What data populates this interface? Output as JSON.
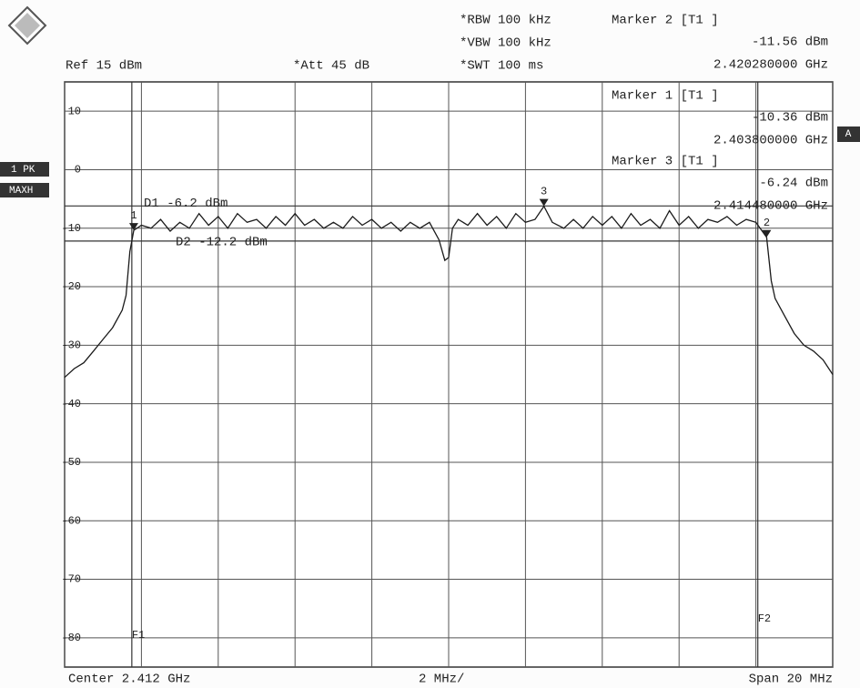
{
  "chart_data": {
    "type": "line",
    "header": {
      "rbw": "*RBW 100 kHz",
      "vbw": "*VBW 100 kHz",
      "swt": "*SWT 100 ms",
      "ref": "Ref 15 dBm",
      "att": "*Att 45 dB"
    },
    "footer": {
      "center": "Center 2.412 GHz",
      "div": "2 MHz/",
      "span": "Span 20 MHz"
    },
    "side_labels": {
      "detector": "1 PK",
      "mode": "MAXH",
      "trace": "A"
    },
    "xlim": [
      2.402,
      2.422
    ],
    "ylim": [
      -85,
      15
    ],
    "yticks": [
      10,
      0,
      -10,
      -20,
      -30,
      -40,
      -50,
      -60,
      -70,
      -80
    ],
    "xticks": [
      2.402,
      2.404,
      2.406,
      2.408,
      2.41,
      2.412,
      2.414,
      2.416,
      2.418,
      2.42,
      2.422
    ],
    "grid": true,
    "color": "#1a1a1a",
    "x": [
      2.402,
      2.40225,
      2.4025,
      2.40275,
      2.403,
      2.40325,
      2.4035,
      2.4036,
      2.4037,
      2.4038,
      2.404,
      2.40425,
      2.4045,
      2.40475,
      2.405,
      2.40525,
      2.4055,
      2.40575,
      2.406,
      2.40625,
      2.4065,
      2.40675,
      2.407,
      2.40725,
      2.4075,
      2.40775,
      2.408,
      2.40825,
      2.4085,
      2.40875,
      2.409,
      2.40925,
      2.4095,
      2.40975,
      2.41,
      2.41025,
      2.4105,
      2.41075,
      2.411,
      2.41125,
      2.4115,
      2.41175,
      2.4119,
      2.412,
      2.4121,
      2.41225,
      2.4125,
      2.41275,
      2.413,
      2.41325,
      2.4135,
      2.41375,
      2.414,
      2.41425,
      2.41448,
      2.4147,
      2.415,
      2.41525,
      2.4155,
      2.41575,
      2.416,
      2.41625,
      2.4165,
      2.41675,
      2.417,
      2.41725,
      2.4175,
      2.41775,
      2.418,
      2.41825,
      2.4185,
      2.41875,
      2.419,
      2.41925,
      2.4195,
      2.41975,
      2.42,
      2.42028,
      2.4204,
      2.4205,
      2.42075,
      2.421,
      2.42125,
      2.4215,
      2.42175,
      2.422
    ],
    "values": [
      -35.5,
      -34,
      -33,
      -31,
      -29,
      -27,
      -24,
      -21.5,
      -14,
      -10.36,
      -9.5,
      -10,
      -8.5,
      -10.5,
      -9,
      -10,
      -7.5,
      -9.5,
      -8,
      -10,
      -7.5,
      -9,
      -8.5,
      -10,
      -8,
      -9.5,
      -7.5,
      -9.5,
      -8.5,
      -10,
      -9,
      -10,
      -8,
      -9.5,
      -8.5,
      -10,
      -9,
      -10.5,
      -9,
      -10,
      -9,
      -12,
      -15.5,
      -15,
      -10,
      -8.5,
      -9.5,
      -7.5,
      -9.5,
      -8,
      -10,
      -7.5,
      -9,
      -8.5,
      -6.24,
      -9,
      -10,
      -8.5,
      -10,
      -8,
      -9.5,
      -8,
      -10,
      -7.5,
      -9.5,
      -8.5,
      -10,
      -7,
      -9.5,
      -8,
      -10,
      -8.5,
      -9,
      -8,
      -9.5,
      -8.5,
      -9,
      -11.56,
      -19,
      -22,
      -25,
      -28,
      -30,
      -31,
      -32.5,
      -35
    ],
    "markers": [
      {
        "tag": "1",
        "name": "Marker 1 [T1 ]",
        "x": 2.4038,
        "x_label": "2.403800000 GHz",
        "y": -10.36,
        "y_label": "-10.36 dBm"
      },
      {
        "tag": "2",
        "name": "Marker 2 [T1 ]",
        "x": 2.42028,
        "x_label": "2.420280000 GHz",
        "y": -11.56,
        "y_label": "-11.56 dBm"
      },
      {
        "tag": "3",
        "name": "Marker 3 [T1 ]",
        "x": 2.41448,
        "x_label": "2.414480000 GHz",
        "y": -6.24,
        "y_label": "-6.24 dBm"
      }
    ],
    "display_lines": [
      {
        "label": "D1 -6.2 dBm",
        "value": -6.2
      },
      {
        "label": "D2 -12.2 dBm",
        "value": -12.2
      }
    ],
    "freq_lines": [
      {
        "label": "F1",
        "value": 2.40375
      },
      {
        "label": "F2",
        "value": 2.42005
      }
    ]
  }
}
